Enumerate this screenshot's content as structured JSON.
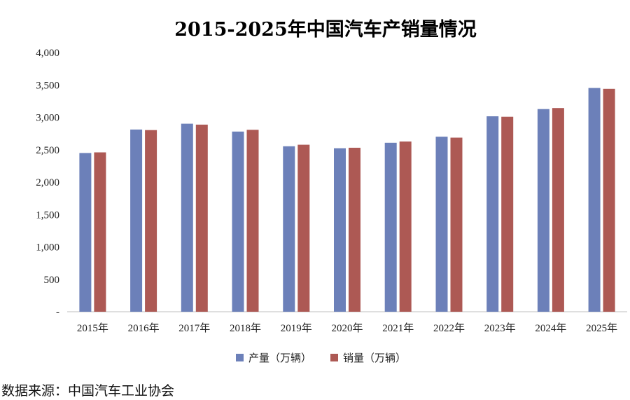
{
  "chart_data": {
    "type": "bar",
    "title": "2015-2025年中国汽车产销量情况",
    "xlabel": "",
    "ylabel": "",
    "categories": [
      "2015年",
      "2016年",
      "2017年",
      "2018年",
      "2019年",
      "2020年",
      "2021年",
      "2022年",
      "2023年",
      "2024年",
      "2025年"
    ],
    "series": [
      {
        "name": "产量（万辆）",
        "color": "#6c80b9",
        "values": [
          2450,
          2812,
          2902,
          2781,
          2553,
          2523,
          2608,
          2702,
          3016,
          3128,
          3453
        ]
      },
      {
        "name": "销量（万辆）",
        "color": "#ad5954",
        "values": [
          2460,
          2803,
          2888,
          2808,
          2577,
          2531,
          2627,
          2686,
          3009,
          3144,
          3440
        ]
      }
    ],
    "ylim": [
      0,
      4000
    ],
    "yticks": [
      {
        "value": 0,
        "label": "-"
      },
      {
        "value": 500,
        "label": "500"
      },
      {
        "value": 1000,
        "label": "1,000"
      },
      {
        "value": 1500,
        "label": "1,500"
      },
      {
        "value": 2000,
        "label": "2,000"
      },
      {
        "value": 2500,
        "label": "2,500"
      },
      {
        "value": 3000,
        "label": "3,000"
      },
      {
        "value": 3500,
        "label": "3,500"
      },
      {
        "value": 4000,
        "label": "4,000"
      }
    ],
    "grid": false,
    "legend_position": "bottom"
  },
  "source": "数据来源：中国汽车工业协会"
}
